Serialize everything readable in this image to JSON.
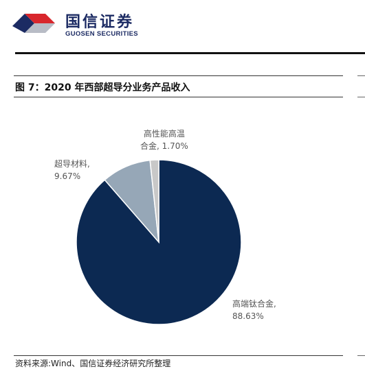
{
  "brand": {
    "name_cn": "国信证券",
    "name_en": "GUOSEN SECURITIES"
  },
  "figure": {
    "title": "图 7：2020 年西部超导分业务产品收入",
    "source": "资料来源:Wind、国信证券经济研究所整理"
  },
  "colors": {
    "brand_red": "#d8262c",
    "brand_navy": "#1c2b63",
    "slice_titanium": "#0c2952",
    "slice_superconducting": "#96a7b7",
    "slice_superalloy": "#c8c8c8"
  },
  "chart_data": {
    "type": "pie",
    "title": "",
    "categories": [
      "高端钛合金",
      "超导材料",
      "高性能高温合金"
    ],
    "values": [
      88.63,
      9.67,
      1.7
    ],
    "unit": "%",
    "start_angle_deg": 0,
    "direction": "clockwise",
    "labels": [
      {
        "lines": [
          "高端钛合金,",
          "88.63%"
        ]
      },
      {
        "lines": [
          "超导材料,",
          "9.67%"
        ]
      },
      {
        "lines": [
          "高性能高温",
          "合金, 1.70%"
        ]
      }
    ],
    "legend": "none"
  }
}
